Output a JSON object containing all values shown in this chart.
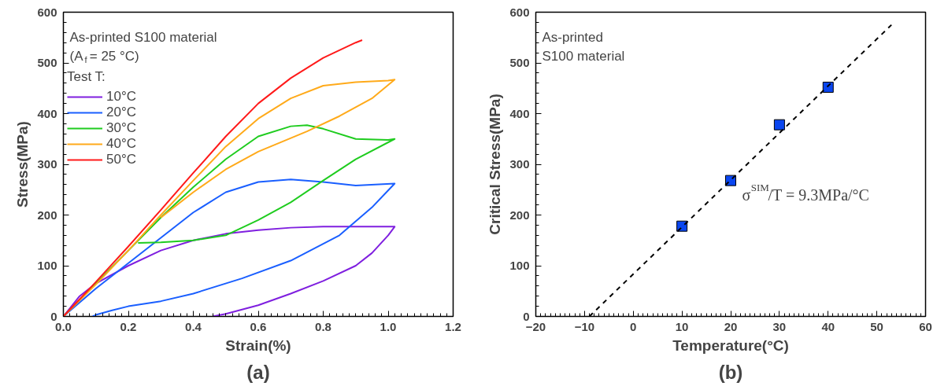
{
  "chart_data": [
    {
      "type": "line",
      "xlabel": "Strain(%)",
      "ylabel": "Stress(MPa)",
      "legend_title": "Test T:",
      "legend": "top left",
      "grid": false,
      "xlim": [
        0,
        1.2
      ],
      "ylim": [
        0,
        600
      ],
      "xticks": [
        {
          "value": 0,
          "label": "0.0"
        },
        0.2,
        0.4,
        0.6,
        0.8,
        {
          "value": 1,
          "label": "1.0"
        },
        {
          "value": 1.2,
          "label": "1.2"
        }
      ],
      "yticks": [
        0,
        100,
        200,
        300,
        400,
        500,
        600
      ],
      "annotations": [
        "As-printed S100 material",
        "(A$_{f}$ = 25 °C)",
        "(a)"
      ],
      "series": [
        {
          "name": "10°C",
          "color": "#7f1fdf",
          "x": [
            0,
            0.05,
            0.1,
            0.2,
            0.3,
            0.4,
            0.5,
            0.6,
            0.7,
            0.8,
            0.9,
            1.02,
            1.0,
            0.95,
            0.9,
            0.8,
            0.7,
            0.6,
            0.5,
            0.46
          ],
          "values": [
            0,
            40,
            65,
            100,
            130,
            150,
            163,
            170,
            175,
            177,
            177,
            177,
            160,
            125,
            100,
            70,
            45,
            22,
            5,
            0
          ]
        },
        {
          "name": "20°C",
          "color": "#1a5fff",
          "x": [
            0,
            0.1,
            0.2,
            0.3,
            0.4,
            0.5,
            0.6,
            0.7,
            0.8,
            0.9,
            1.02,
            0.95,
            0.85,
            0.7,
            0.55,
            0.4,
            0.3,
            0.2,
            0.15,
            0.1,
            0.09
          ],
          "values": [
            0,
            55,
            105,
            155,
            205,
            245,
            265,
            270,
            265,
            258,
            262,
            215,
            160,
            110,
            75,
            45,
            30,
            20,
            12,
            3,
            0
          ]
        },
        {
          "name": "30°C",
          "color": "#1fcc1f",
          "x": [
            0,
            0.1,
            0.2,
            0.3,
            0.4,
            0.5,
            0.6,
            0.7,
            0.75,
            0.8,
            0.9,
            1.0,
            1.02,
            0.9,
            0.8,
            0.7,
            0.6,
            0.5,
            0.4,
            0.3,
            0.23
          ],
          "values": [
            0,
            65,
            130,
            195,
            255,
            310,
            355,
            375,
            377,
            370,
            350,
            348,
            350,
            310,
            268,
            225,
            190,
            160,
            150,
            146,
            145
          ]
        },
        {
          "name": "40°C",
          "color": "#ffaa1a",
          "x": [
            0,
            0.1,
            0.2,
            0.3,
            0.4,
            0.5,
            0.6,
            0.7,
            0.8,
            0.9,
            1.0,
            1.02,
            0.95,
            0.85,
            0.75,
            0.6,
            0.5,
            0.4,
            0.3
          ],
          "values": [
            0,
            63,
            130,
            200,
            268,
            335,
            390,
            430,
            455,
            462,
            465,
            467,
            430,
            395,
            365,
            325,
            290,
            245,
            195
          ]
        },
        {
          "name": "50°C",
          "color": "#ff1a1a",
          "x": [
            0,
            0.1,
            0.2,
            0.3,
            0.4,
            0.5,
            0.6,
            0.7,
            0.8,
            0.9,
            0.92
          ],
          "values": [
            0,
            68,
            138,
            210,
            283,
            355,
            420,
            470,
            510,
            540,
            545
          ]
        }
      ]
    },
    {
      "type": "scatter",
      "xlabel": "Temperature(°C)",
      "ylabel": "Critical Stress(MPa)",
      "grid": false,
      "xlim": [
        -20,
        60
      ],
      "ylim": [
        0,
        600
      ],
      "xticks": [
        -20,
        -10,
        0,
        10,
        20,
        30,
        40,
        50,
        60
      ],
      "yticks": [
        0,
        100,
        200,
        300,
        400,
        500,
        600
      ],
      "annotations": [
        "As-printed",
        "S100 material",
        "σ$^{SIM}$/T = 9.3MPa/°C",
        "(b)"
      ],
      "series": [
        {
          "marker": "square",
          "color": "#0a46f0",
          "x": [
            10,
            20,
            30,
            40
          ],
          "values": [
            178,
            268,
            378,
            452
          ]
        },
        {
          "type": "line",
          "line_style": "dashed",
          "color": "#000000",
          "x": [
            -9,
            53
          ],
          "values": [
            0,
            575
          ]
        }
      ]
    }
  ]
}
